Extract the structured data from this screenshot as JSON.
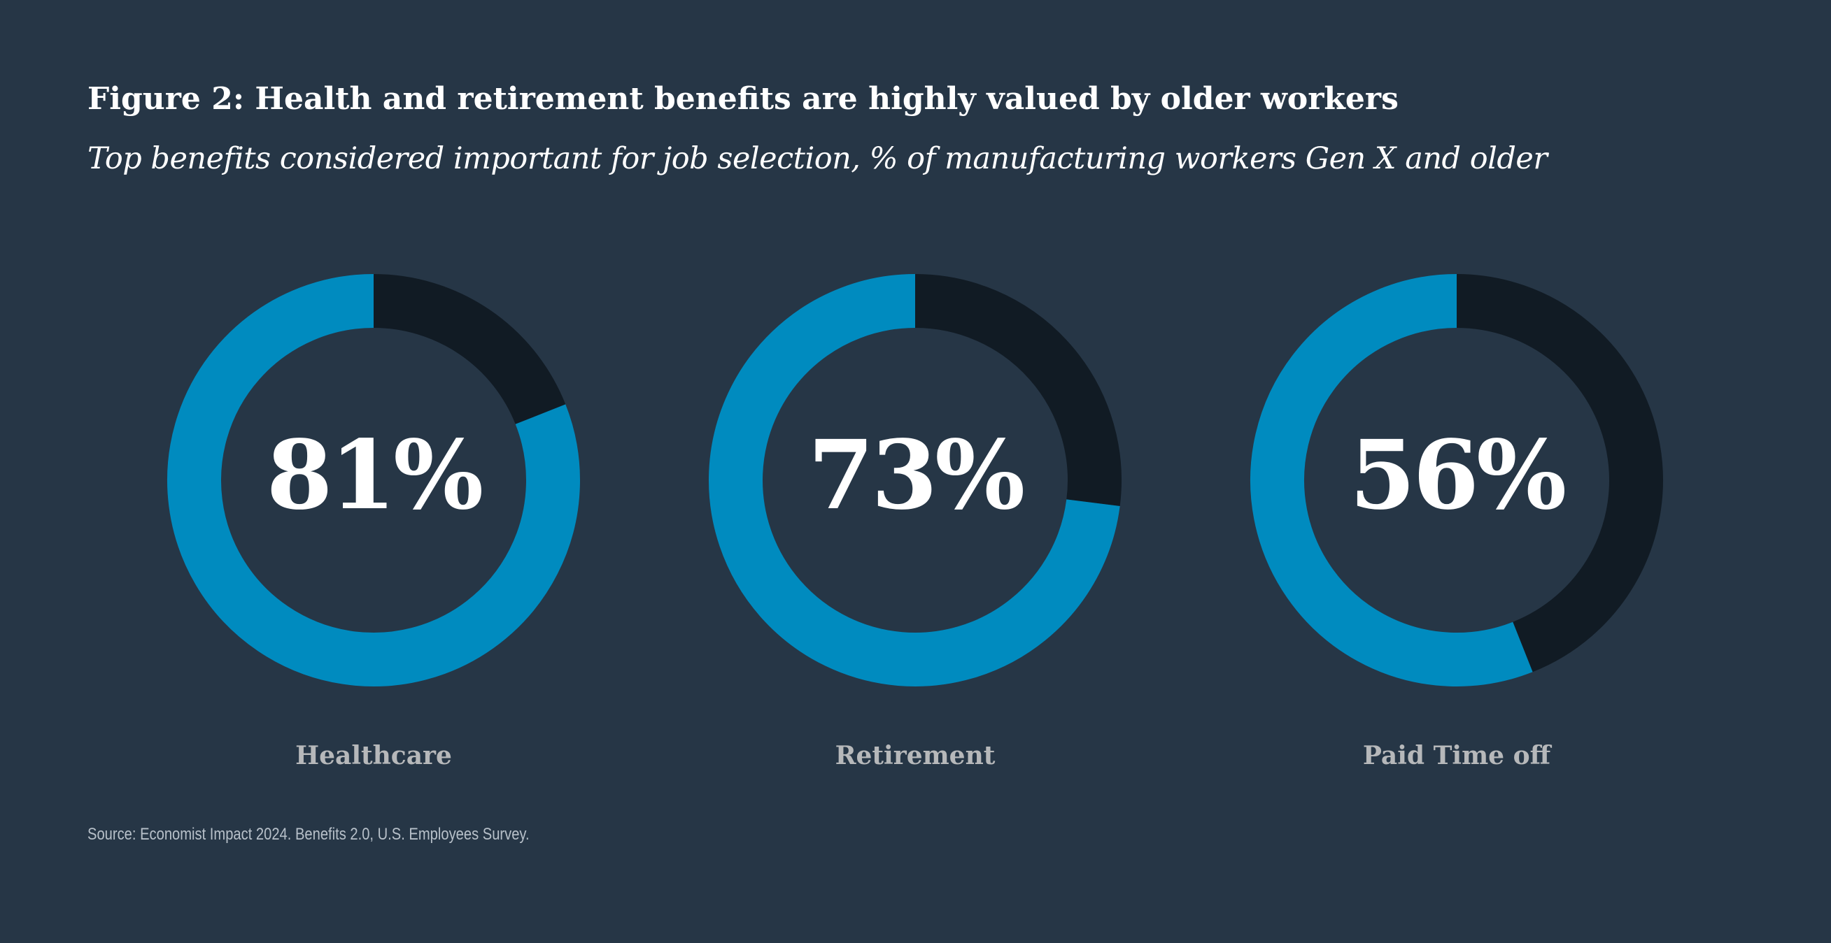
{
  "header": {
    "title": "Figure 2: Health and retirement benefits are highly valued by older workers",
    "subtitle": "Top benefits considered important for job selection, % of manufacturing workers Gen X and older"
  },
  "chart_data": {
    "type": "pie",
    "unit": "%",
    "colors": {
      "value": "#008bbf",
      "remainder": "#111b24",
      "center_label": "#ffffff",
      "category_label": "#b6b8ba"
    },
    "items": [
      {
        "label": "Healthcare",
        "value": 81,
        "display": "81%"
      },
      {
        "label": "Retirement",
        "value": 73,
        "display": "73%"
      },
      {
        "label": "Paid Time off",
        "value": 56,
        "display": "56%"
      }
    ]
  },
  "footer": {
    "source": "Source: Economist Impact 2024. Benefits 2.0, U.S. Employees Survey."
  }
}
